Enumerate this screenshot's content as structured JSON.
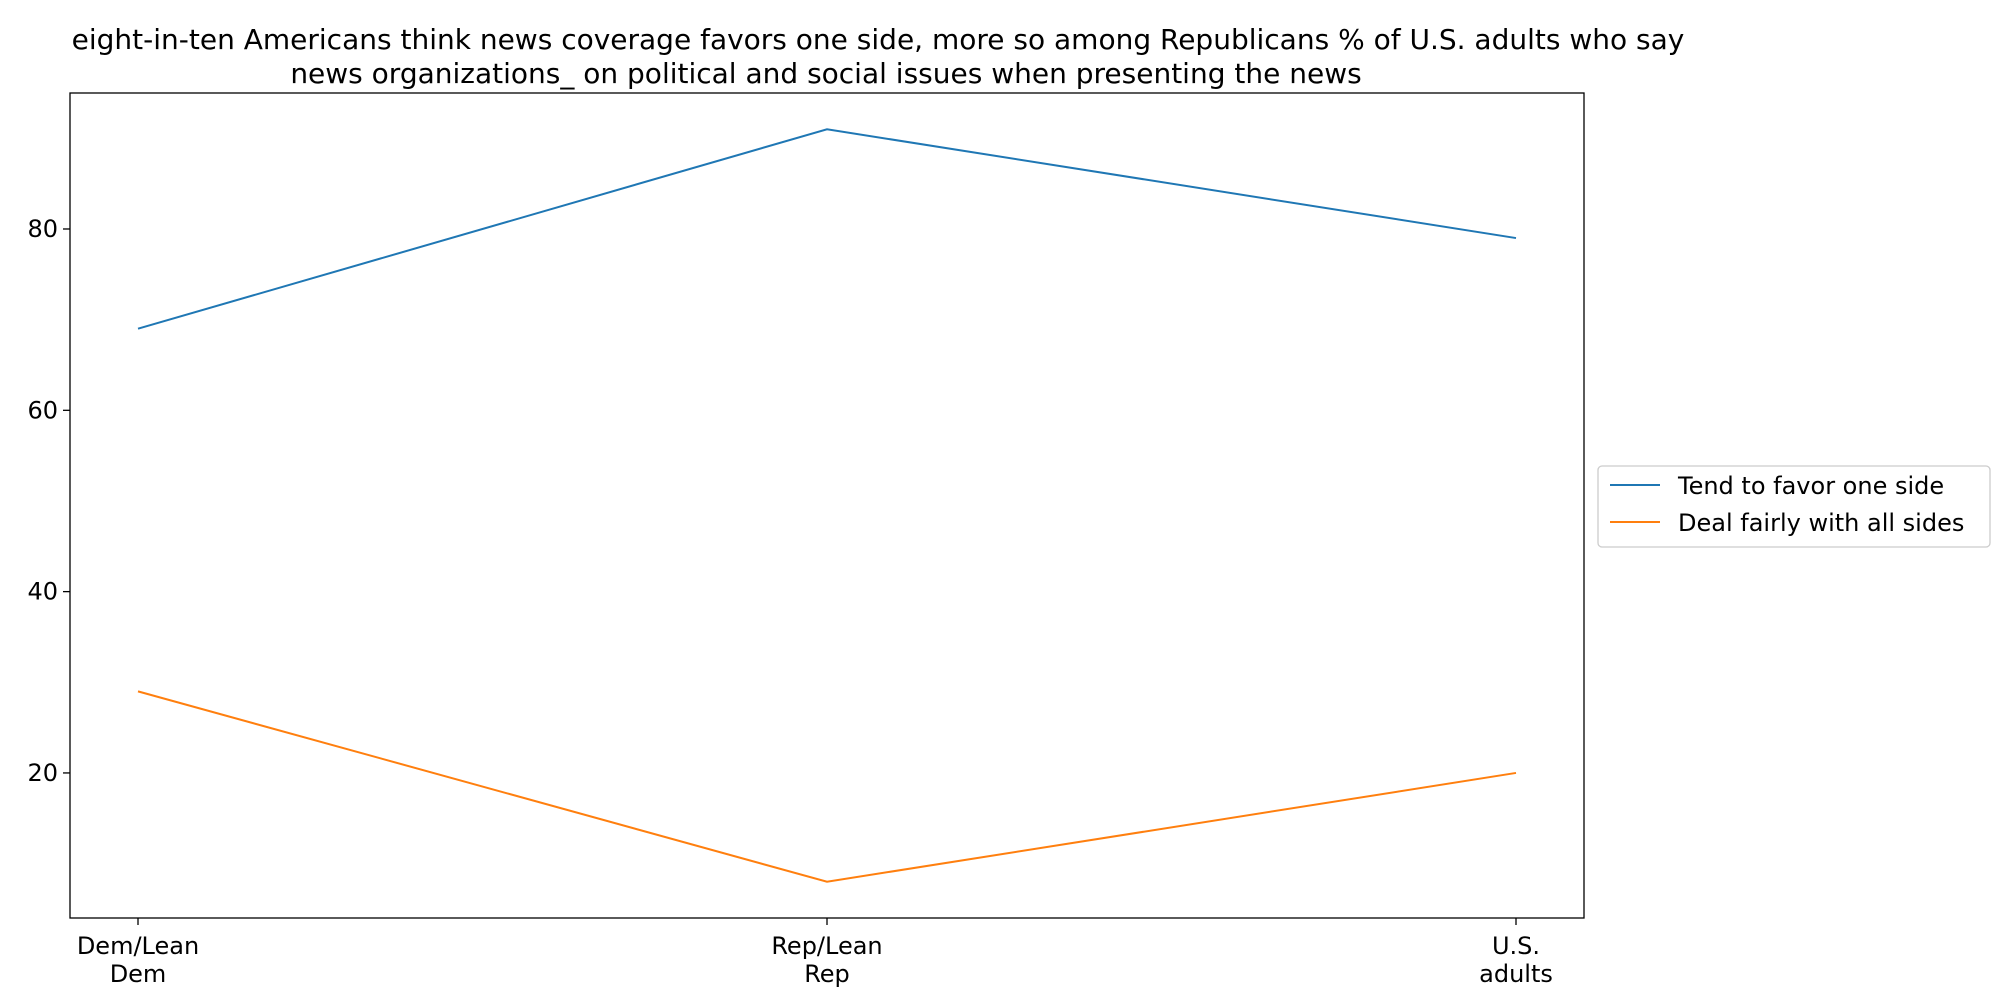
{
  "chart_data": {
    "type": "line",
    "title_lines": [
      "eight-in-ten Americans think news coverage favors one side, more so among Republicans % of U.S. adults who say",
      "news organizations_ on political and social issues when presenting the news"
    ],
    "xlabel": "",
    "ylabel": "",
    "categories": [
      [
        "Dem/Lean",
        "Dem"
      ],
      [
        "Rep/Lean",
        "Rep"
      ],
      [
        "U.S.",
        "adults"
      ]
    ],
    "ylim": [
      4,
      95
    ],
    "yticks": [
      20,
      40,
      60,
      80
    ],
    "grid": false,
    "legend_position": "center-right-outside",
    "series": [
      {
        "name": "Tend to favor one side",
        "values": [
          69,
          91,
          79
        ],
        "color": "#1f77b4"
      },
      {
        "name": "Deal fairly with all sides",
        "values": [
          29,
          8,
          20
        ],
        "color": "#ff7f0e"
      }
    ]
  }
}
